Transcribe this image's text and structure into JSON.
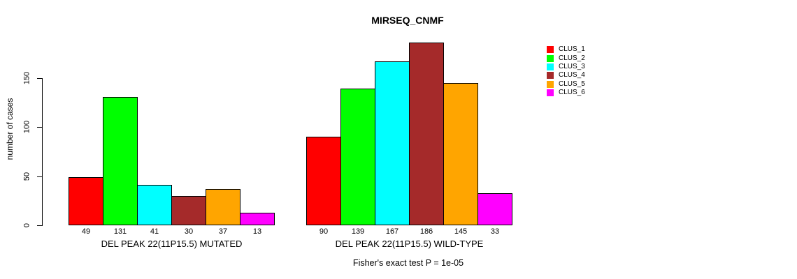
{
  "chart_data": {
    "type": "bar",
    "title": "MIRSEQ_CNMF",
    "ylabel": "number of cases",
    "xlabel": "",
    "ylim": [
      0,
      150
    ],
    "yticks": [
      0,
      50,
      100,
      150
    ],
    "grid": false,
    "legend_position": "right",
    "categories": [
      "DEL PEAK 22(11P15.5) MUTATED",
      "DEL PEAK 22(11P15.5) WILD-TYPE"
    ],
    "series": [
      {
        "name": "CLUS_1",
        "color": "#FF0000",
        "values": [
          49,
          90
        ]
      },
      {
        "name": "CLUS_2",
        "color": "#00FF00",
        "values": [
          131,
          139
        ]
      },
      {
        "name": "CLUS_3",
        "color": "#00FFFF",
        "values": [
          41,
          167
        ]
      },
      {
        "name": "CLUS_4",
        "color": "#A52A2A",
        "values": [
          30,
          186
        ]
      },
      {
        "name": "CLUS_5",
        "color": "#FFA500",
        "values": [
          37,
          145
        ]
      },
      {
        "name": "CLUS_6",
        "color": "#FF00FF",
        "values": [
          13,
          33
        ]
      }
    ],
    "bar_value_labels_shown": true,
    "annotation": "Fisher's exact test P = 1e-05",
    "background_color": "#FFFFFF",
    "axis_color": "#000000"
  }
}
